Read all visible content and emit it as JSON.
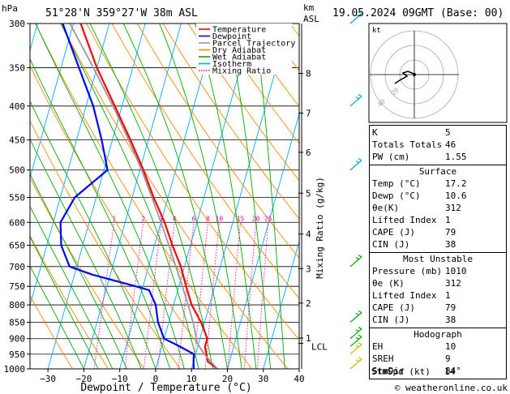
{
  "header": {
    "hpa_label": "hPa",
    "location": "51°28'N 359°27'W 38m ASL",
    "km_label": "km",
    "asl_label": "ASL",
    "datetime": "19.05.2024 09GMT (Base: 00)"
  },
  "footer": {
    "xlabel": "Dewpoint / Temperature (°C)",
    "ylabel_right": "Mixing Ratio (g/kg)",
    "copyright": "© weatheronline.co.uk"
  },
  "legend": [
    {
      "label": "Temperature",
      "color": "#ff0000"
    },
    {
      "label": "Dewpoint",
      "color": "#0000ff"
    },
    {
      "label": "Parcel Trajectory",
      "color": "#999999"
    },
    {
      "label": "Dry Adiabat",
      "color": "#ff8800"
    },
    {
      "label": "Wet Adiabat",
      "color": "#00aa00"
    },
    {
      "label": "Isotherm",
      "color": "#00aaff"
    },
    {
      "label": "Mixing Ratio",
      "color": "#ff00aa"
    }
  ],
  "chart_data": {
    "type": "line",
    "pressure_levels": [
      300,
      350,
      400,
      450,
      500,
      550,
      600,
      650,
      700,
      750,
      800,
      850,
      900,
      950,
      1000
    ],
    "pressure_tick_labels": [
      "300",
      "350",
      "400",
      "450",
      "500",
      "550",
      "600",
      "650",
      "700",
      "750",
      "800",
      "850",
      "900",
      "950",
      "1000"
    ],
    "temp_ticks": [
      -30,
      -20,
      -10,
      0,
      10,
      20,
      30,
      40
    ],
    "temp_tick_labels": [
      "−30",
      "−20",
      "−10",
      "0",
      "10",
      "20",
      "30",
      "40"
    ],
    "xlim": [
      -35,
      40
    ],
    "ylim": [
      300,
      1000
    ],
    "km_ticks": [
      {
        "label": "8",
        "p": 357
      },
      {
        "label": "7",
        "p": 410
      },
      {
        "label": "6",
        "p": 470
      },
      {
        "label": "5",
        "p": 542
      },
      {
        "label": "4",
        "p": 625
      },
      {
        "label": "3",
        "p": 705
      },
      {
        "label": "2",
        "p": 795
      },
      {
        "label": "1",
        "p": 898
      }
    ],
    "lcl": {
      "label": "LCL",
      "p": 915
    },
    "mixing_ratio_labels": [
      {
        "label": "1",
        "w": 1
      },
      {
        "label": "2",
        "w": 2
      },
      {
        "label": "3",
        "w": 3
      },
      {
        "label": "4",
        "w": 4
      },
      {
        "label": "6",
        "w": 6
      },
      {
        "label": "8",
        "w": 8
      },
      {
        "label": "10",
        "w": 10
      },
      {
        "label": "15",
        "w": 15
      },
      {
        "label": "20",
        "w": 20
      },
      {
        "label": "25",
        "w": 25
      }
    ],
    "series": [
      {
        "name": "Temperature",
        "color": "#ff0000",
        "width": 2.2,
        "points": [
          [
            1000,
            17.2
          ],
          [
            975,
            14
          ],
          [
            950,
            13
          ],
          [
            925,
            12
          ],
          [
            900,
            12
          ],
          [
            850,
            9
          ],
          [
            800,
            5
          ],
          [
            750,
            2
          ],
          [
            700,
            -1
          ],
          [
            650,
            -5
          ],
          [
            600,
            -9
          ],
          [
            550,
            -14
          ],
          [
            500,
            -19
          ],
          [
            450,
            -25
          ],
          [
            400,
            -32
          ],
          [
            350,
            -40
          ],
          [
            300,
            -48
          ]
        ]
      },
      {
        "name": "Dewpoint",
        "color": "#0000ff",
        "width": 2.2,
        "points": [
          [
            1000,
            10.6
          ],
          [
            975,
            10
          ],
          [
            950,
            9.5
          ],
          [
            925,
            5
          ],
          [
            900,
            0
          ],
          [
            850,
            -3
          ],
          [
            800,
            -5
          ],
          [
            760,
            -8
          ],
          [
            750,
            -12
          ],
          [
            720,
            -25
          ],
          [
            700,
            -32
          ],
          [
            650,
            -36
          ],
          [
            600,
            -38
          ],
          [
            550,
            -36
          ],
          [
            500,
            -29
          ],
          [
            450,
            -33
          ],
          [
            400,
            -38
          ],
          [
            350,
            -45
          ],
          [
            300,
            -53
          ]
        ]
      },
      {
        "name": "Parcel Trajectory",
        "color": "#999999",
        "width": 1.8,
        "points": [
          [
            1000,
            17.2
          ],
          [
            950,
            12.4
          ],
          [
            915,
            9.6
          ],
          [
            900,
            9
          ],
          [
            850,
            6.8
          ],
          [
            800,
            4
          ],
          [
            750,
            1
          ],
          [
            700,
            -2.4
          ],
          [
            650,
            -6
          ],
          [
            600,
            -10
          ],
          [
            550,
            -14.5
          ],
          [
            500,
            -19.5
          ],
          [
            450,
            -25.5
          ],
          [
            400,
            -32.5
          ],
          [
            350,
            -41
          ],
          [
            300,
            -51
          ]
        ]
      }
    ]
  },
  "indices": {
    "top": [
      {
        "label": "K",
        "value": "5"
      },
      {
        "label": "Totals Totals",
        "value": "46"
      },
      {
        "label": "PW (cm)",
        "value": "1.55"
      }
    ],
    "surface_title": "Surface",
    "surface": [
      {
        "label": "Temp (°C)",
        "value": "17.2"
      },
      {
        "label": "Dewp (°C)",
        "value": "10.6"
      },
      {
        "label": "θe(K)",
        "value": "312"
      },
      {
        "label": "Lifted Index",
        "value": "1"
      },
      {
        "label": "CAPE (J)",
        "value": "79"
      },
      {
        "label": "CIN (J)",
        "value": "38"
      }
    ],
    "unstable_title": "Most Unstable",
    "unstable": [
      {
        "label": "Pressure (mb)",
        "value": "1010"
      },
      {
        "label": "θe (K)",
        "value": "312"
      },
      {
        "label": "Lifted Index",
        "value": "1"
      },
      {
        "label": "CAPE (J)",
        "value": "79"
      },
      {
        "label": "CIN (J)",
        "value": "38"
      }
    ],
    "hodograph_title": "Hodograph",
    "hodograph": [
      {
        "label": "EH",
        "value": "10"
      },
      {
        "label": "SREH",
        "value": "9"
      },
      {
        "label": "StmDir",
        "value": "84°"
      },
      {
        "label": "StmSpd (kt)",
        "value": "14"
      }
    ]
  },
  "hodo": {
    "label": "kt",
    "ring_labels": [
      "20",
      "40"
    ]
  }
}
